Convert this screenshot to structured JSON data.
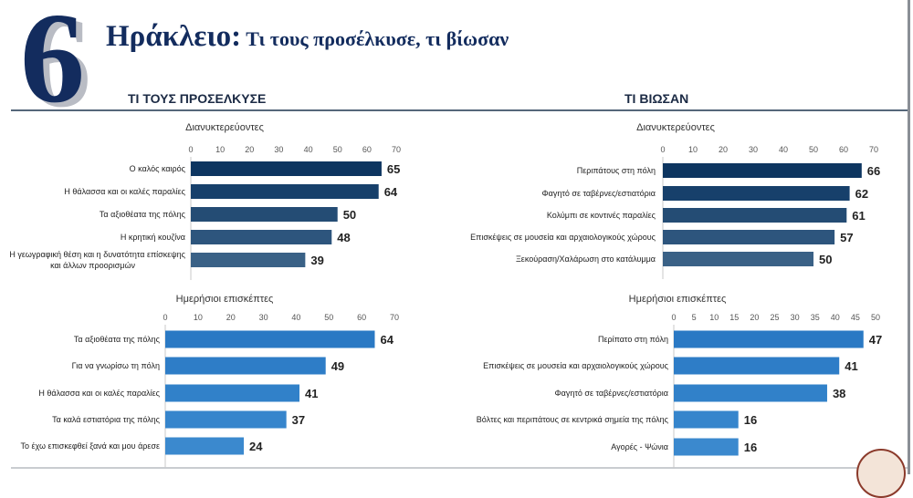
{
  "header": {
    "number": "6",
    "title_main": "Ηράκλειο:",
    "title_sub": " Τι τους προσέλκυσε, τι βίωσαν",
    "section_left": "ΤΙ ΤΟΥΣ ΠΡΟΣΕΛΚΥΣΕ",
    "section_right": "ΤΙ ΒΙΩΣΑΝ"
  },
  "chart_data": [
    {
      "type": "bar",
      "title": "Διανυκτερεύοντες",
      "categories": [
        "Ο καλός καιρός",
        "Η θάλασσα και οι καλές παραλίες",
        "Τα αξιοθέατα της πόλης",
        "Η κρητική κουζίνα",
        "Η γεωγραφική θέση και η δυνατότητα επίσκεψης|και άλλων προορισμών"
      ],
      "values": [
        65,
        64,
        50,
        48,
        39
      ],
      "ticks": [
        0,
        10,
        20,
        30,
        40,
        50,
        60,
        70
      ],
      "xlim": [
        0,
        70
      ],
      "colors": [
        "#0d3560",
        "#17406b",
        "#244c74",
        "#2d557d",
        "#3a6186"
      ]
    },
    {
      "type": "bar",
      "title": "Διανυκτερεύοντες",
      "categories": [
        "Περιπάτους στη πόλη",
        "Φαγητό σε ταβέρνες/εστιατόρια",
        "Κολύμπι σε κοντινές παραλίες",
        "Επισκέψεις σε μουσεία και αρχαιολογικούς χώρους",
        "Ξεκούραση/Χαλάρωση στο κατάλυμμα"
      ],
      "values": [
        66,
        62,
        61,
        57,
        50
      ],
      "ticks": [
        0,
        10,
        20,
        30,
        40,
        50,
        60,
        70
      ],
      "xlim": [
        0,
        70
      ],
      "colors": [
        "#0d3560",
        "#17406b",
        "#244c74",
        "#2d557d",
        "#3a6186"
      ]
    },
    {
      "type": "bar",
      "title": "Ημερήσιοι επισκέπτες",
      "categories": [
        "Τα αξιοθέατα της πόλης",
        "Για να γνωρίσω τη πόλη",
        "Η θάλασσα και οι καλές παραλίες",
        "Τα καλά εστιατόρια της πόλης",
        "Το έχω επισκεφθεί ξανά και μου άρεσε"
      ],
      "values": [
        64,
        49,
        41,
        37,
        24
      ],
      "ticks": [
        0,
        10,
        20,
        30,
        40,
        50,
        60,
        70
      ],
      "xlim": [
        0,
        70
      ],
      "colors": [
        "#2a79c4",
        "#2e7dc7",
        "#3181c9",
        "#3685cc",
        "#3b89ce"
      ]
    },
    {
      "type": "bar",
      "title": "Ημερήσιοι επισκέπτες",
      "categories": [
        "Περίπατο στη πόλη",
        "Επισκέψεις σε μουσεία και αρχαιολογικούς χώρους",
        "Φαγητό σε ταβέρνες/εστιατόρια",
        "Βόλτες και περιπάτους σε κεντρικά σημεία της πόλης",
        "Αγορές - Ψώνια"
      ],
      "values": [
        47,
        41,
        38,
        16,
        16
      ],
      "ticks": [
        0,
        5,
        10,
        15,
        20,
        25,
        30,
        35,
        40,
        45,
        50
      ],
      "xlim": [
        0,
        50
      ],
      "colors": [
        "#2a79c4",
        "#2e7dc7",
        "#3181c9",
        "#3685cc",
        "#3b89ce"
      ]
    }
  ]
}
